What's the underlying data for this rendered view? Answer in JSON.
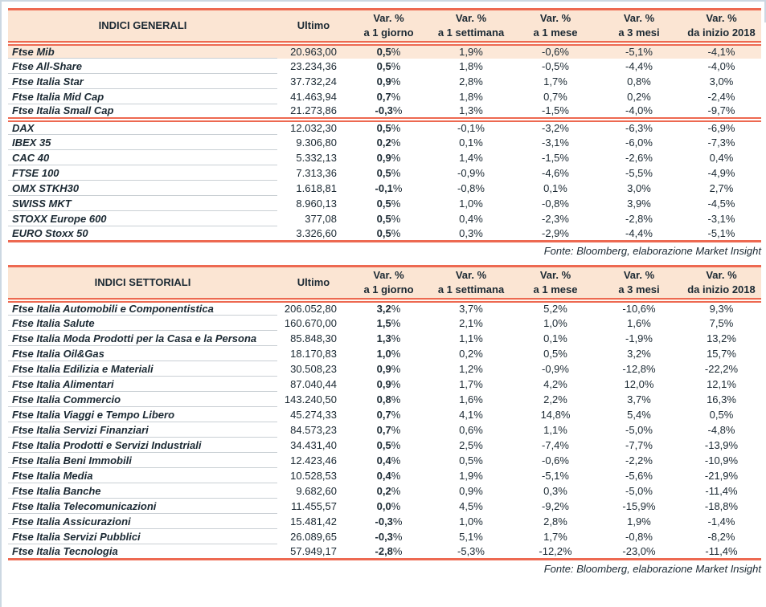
{
  "style": {
    "red": "#ed6951",
    "peach": "#fbe5d3",
    "peach_row": "#fce8d8",
    "ink": "#1b2933",
    "row_line": "#c9cfd4",
    "frame": "#ccd8e2"
  },
  "tables": [
    {
      "title": "INDICI GENERALI",
      "ultimo_label": "Ultimo",
      "var_headers": [
        {
          "l1": "Var. %",
          "l2": "a 1 giorno"
        },
        {
          "l1": "Var. %",
          "l2": "a 1 settimana"
        },
        {
          "l1": "Var. %",
          "l2": "a 1 mese"
        },
        {
          "l1": "Var. %",
          "l2": "a 3 mesi"
        },
        {
          "l1": "Var. %",
          "l2": "da inizio 2018"
        }
      ],
      "groups": [
        {
          "rows": [
            {
              "name": "Ftse Mib",
              "ultimo": "20.963,00",
              "d1": "0,5%",
              "w1": "1,9%",
              "m1": "-0,6%",
              "m3": "-5,1%",
              "ytd": "-4,1%",
              "highlight": true
            },
            {
              "name": "Ftse All-Share",
              "ultimo": "23.234,36",
              "d1": "0,5%",
              "w1": "1,8%",
              "m1": "-0,5%",
              "m3": "-4,4%",
              "ytd": "-4,0%"
            },
            {
              "name": "Ftse Italia Star",
              "ultimo": "37.732,24",
              "d1": "0,9%",
              "w1": "2,8%",
              "m1": "1,7%",
              "m3": "0,8%",
              "ytd": "3,0%"
            },
            {
              "name": "Ftse Italia Mid Cap",
              "ultimo": "41.463,94",
              "d1": "0,7%",
              "w1": "1,8%",
              "m1": "0,7%",
              "m3": "0,2%",
              "ytd": "-2,4%"
            },
            {
              "name": "Ftse Italia Small Cap",
              "ultimo": "21.273,86",
              "d1": "-0,3%",
              "w1": "1,3%",
              "m1": "-1,5%",
              "m3": "-4,0%",
              "ytd": "-9,7%"
            }
          ]
        },
        {
          "rows": [
            {
              "name": "DAX",
              "ultimo": "12.032,30",
              "d1": "0,5%",
              "w1": "-0,1%",
              "m1": "-3,2%",
              "m3": "-6,3%",
              "ytd": "-6,9%"
            },
            {
              "name": "IBEX 35",
              "ultimo": "9.306,80",
              "d1": "0,2%",
              "w1": "0,1%",
              "m1": "-3,1%",
              "m3": "-6,0%",
              "ytd": "-7,3%"
            },
            {
              "name": "CAC 40",
              "ultimo": "5.332,13",
              "d1": "0,9%",
              "w1": "1,4%",
              "m1": "-1,5%",
              "m3": "-2,6%",
              "ytd": "0,4%"
            },
            {
              "name": "FTSE 100",
              "ultimo": "7.313,36",
              "d1": "0,5%",
              "w1": "-0,9%",
              "m1": "-4,6%",
              "m3": "-5,5%",
              "ytd": "-4,9%"
            },
            {
              "name": "OMX STKH30",
              "ultimo": "1.618,81",
              "d1": "-0,1%",
              "w1": "-0,8%",
              "m1": "0,1%",
              "m3": "3,0%",
              "ytd": "2,7%"
            },
            {
              "name": "SWISS MKT",
              "ultimo": "8.960,13",
              "d1": "0,5%",
              "w1": "1,0%",
              "m1": "-0,8%",
              "m3": "3,9%",
              "ytd": "-4,5%"
            },
            {
              "name": "STOXX Europe 600",
              "ultimo": "377,08",
              "d1": "0,5%",
              "w1": "0,4%",
              "m1": "-2,3%",
              "m3": "-2,8%",
              "ytd": "-3,1%"
            },
            {
              "name": "EURO Stoxx 50",
              "ultimo": "3.326,60",
              "d1": "0,5%",
              "w1": "0,3%",
              "m1": "-2,9%",
              "m3": "-4,4%",
              "ytd": "-5,1%"
            }
          ]
        }
      ],
      "fonte": "Fonte: Bloomberg, elaborazione Market Insight"
    },
    {
      "title": "INDICI SETTORIALI",
      "ultimo_label": "Ultimo",
      "var_headers": [
        {
          "l1": "Var. %",
          "l2": "a 1 giorno"
        },
        {
          "l1": "Var. %",
          "l2": "a 1 settimana"
        },
        {
          "l1": "Var. %",
          "l2": "a 1 mese"
        },
        {
          "l1": "Var. %",
          "l2": "a 3 mesi"
        },
        {
          "l1": "Var. %",
          "l2": "da inizio 2018"
        }
      ],
      "groups": [
        {
          "rows": [
            {
              "name": "Ftse Italia Automobili e Componentistica",
              "ultimo": "206.052,80",
              "d1": "3,2%",
              "w1": "3,7%",
              "m1": "5,2%",
              "m3": "-10,6%",
              "ytd": "9,3%"
            },
            {
              "name": "Ftse Italia Salute",
              "ultimo": "160.670,00",
              "d1": "1,5%",
              "w1": "2,1%",
              "m1": "1,0%",
              "m3": "1,6%",
              "ytd": "7,5%"
            },
            {
              "name": "Ftse Italia Moda Prodotti per la Casa e la Persona",
              "ultimo": "85.848,30",
              "d1": "1,3%",
              "w1": "1,1%",
              "m1": "0,1%",
              "m3": "-1,9%",
              "ytd": "13,2%"
            },
            {
              "name": "Ftse Italia Oil&Gas",
              "ultimo": "18.170,83",
              "d1": "1,0%",
              "w1": "0,2%",
              "m1": "0,5%",
              "m3": "3,2%",
              "ytd": "15,7%"
            },
            {
              "name": "Ftse Italia Edilizia e Materiali",
              "ultimo": "30.508,23",
              "d1": "0,9%",
              "w1": "1,2%",
              "m1": "-0,9%",
              "m3": "-12,8%",
              "ytd": "-22,2%"
            },
            {
              "name": "Ftse Italia Alimentari",
              "ultimo": "87.040,44",
              "d1": "0,9%",
              "w1": "1,7%",
              "m1": "4,2%",
              "m3": "12,0%",
              "ytd": "12,1%"
            },
            {
              "name": "Ftse Italia Commercio",
              "ultimo": "143.240,50",
              "d1": "0,8%",
              "w1": "1,6%",
              "m1": "2,2%",
              "m3": "3,7%",
              "ytd": "16,3%"
            },
            {
              "name": "Ftse Italia Viaggi e Tempo Libero",
              "ultimo": "45.274,33",
              "d1": "0,7%",
              "w1": "4,1%",
              "m1": "14,8%",
              "m3": "5,4%",
              "ytd": "0,5%"
            },
            {
              "name": "Ftse Italia Servizi Finanziari",
              "ultimo": "84.573,23",
              "d1": "0,7%",
              "w1": "0,6%",
              "m1": "1,1%",
              "m3": "-5,0%",
              "ytd": "-4,8%"
            },
            {
              "name": "Ftse Italia Prodotti e Servizi Industriali",
              "ultimo": "34.431,40",
              "d1": "0,5%",
              "w1": "2,5%",
              "m1": "-7,4%",
              "m3": "-7,7%",
              "ytd": "-13,9%"
            },
            {
              "name": "Ftse Italia Beni Immobili",
              "ultimo": "12.423,46",
              "d1": "0,4%",
              "w1": "0,5%",
              "m1": "-0,6%",
              "m3": "-2,2%",
              "ytd": "-10,9%"
            },
            {
              "name": "Ftse Italia Media",
              "ultimo": "10.528,53",
              "d1": "0,4%",
              "w1": "1,9%",
              "m1": "-5,1%",
              "m3": "-5,6%",
              "ytd": "-21,9%"
            },
            {
              "name": "Ftse Italia Banche",
              "ultimo": "9.682,60",
              "d1": "0,2%",
              "w1": "0,9%",
              "m1": "0,3%",
              "m3": "-5,0%",
              "ytd": "-11,4%"
            },
            {
              "name": "Ftse Italia Telecomunicazioni",
              "ultimo": "11.455,57",
              "d1": "0,0%",
              "w1": "4,5%",
              "m1": "-9,2%",
              "m3": "-15,9%",
              "ytd": "-18,8%"
            },
            {
              "name": "Ftse Italia Assicurazioni",
              "ultimo": "15.481,42",
              "d1": "-0,3%",
              "w1": "1,0%",
              "m1": "2,8%",
              "m3": "1,9%",
              "ytd": "-1,4%"
            },
            {
              "name": "Ftse Italia Servizi Pubblici",
              "ultimo": "26.089,65",
              "d1": "-0,3%",
              "w1": "5,1%",
              "m1": "1,7%",
              "m3": "-0,8%",
              "ytd": "-8,2%"
            },
            {
              "name": "Ftse Italia Tecnologia",
              "ultimo": "57.949,17",
              "d1": "-2,8%",
              "w1": "-5,3%",
              "m1": "-12,2%",
              "m3": "-23,0%",
              "ytd": "-11,4%"
            }
          ]
        }
      ],
      "fonte": "Fonte: Bloomberg, elaborazione Market Insight"
    }
  ]
}
